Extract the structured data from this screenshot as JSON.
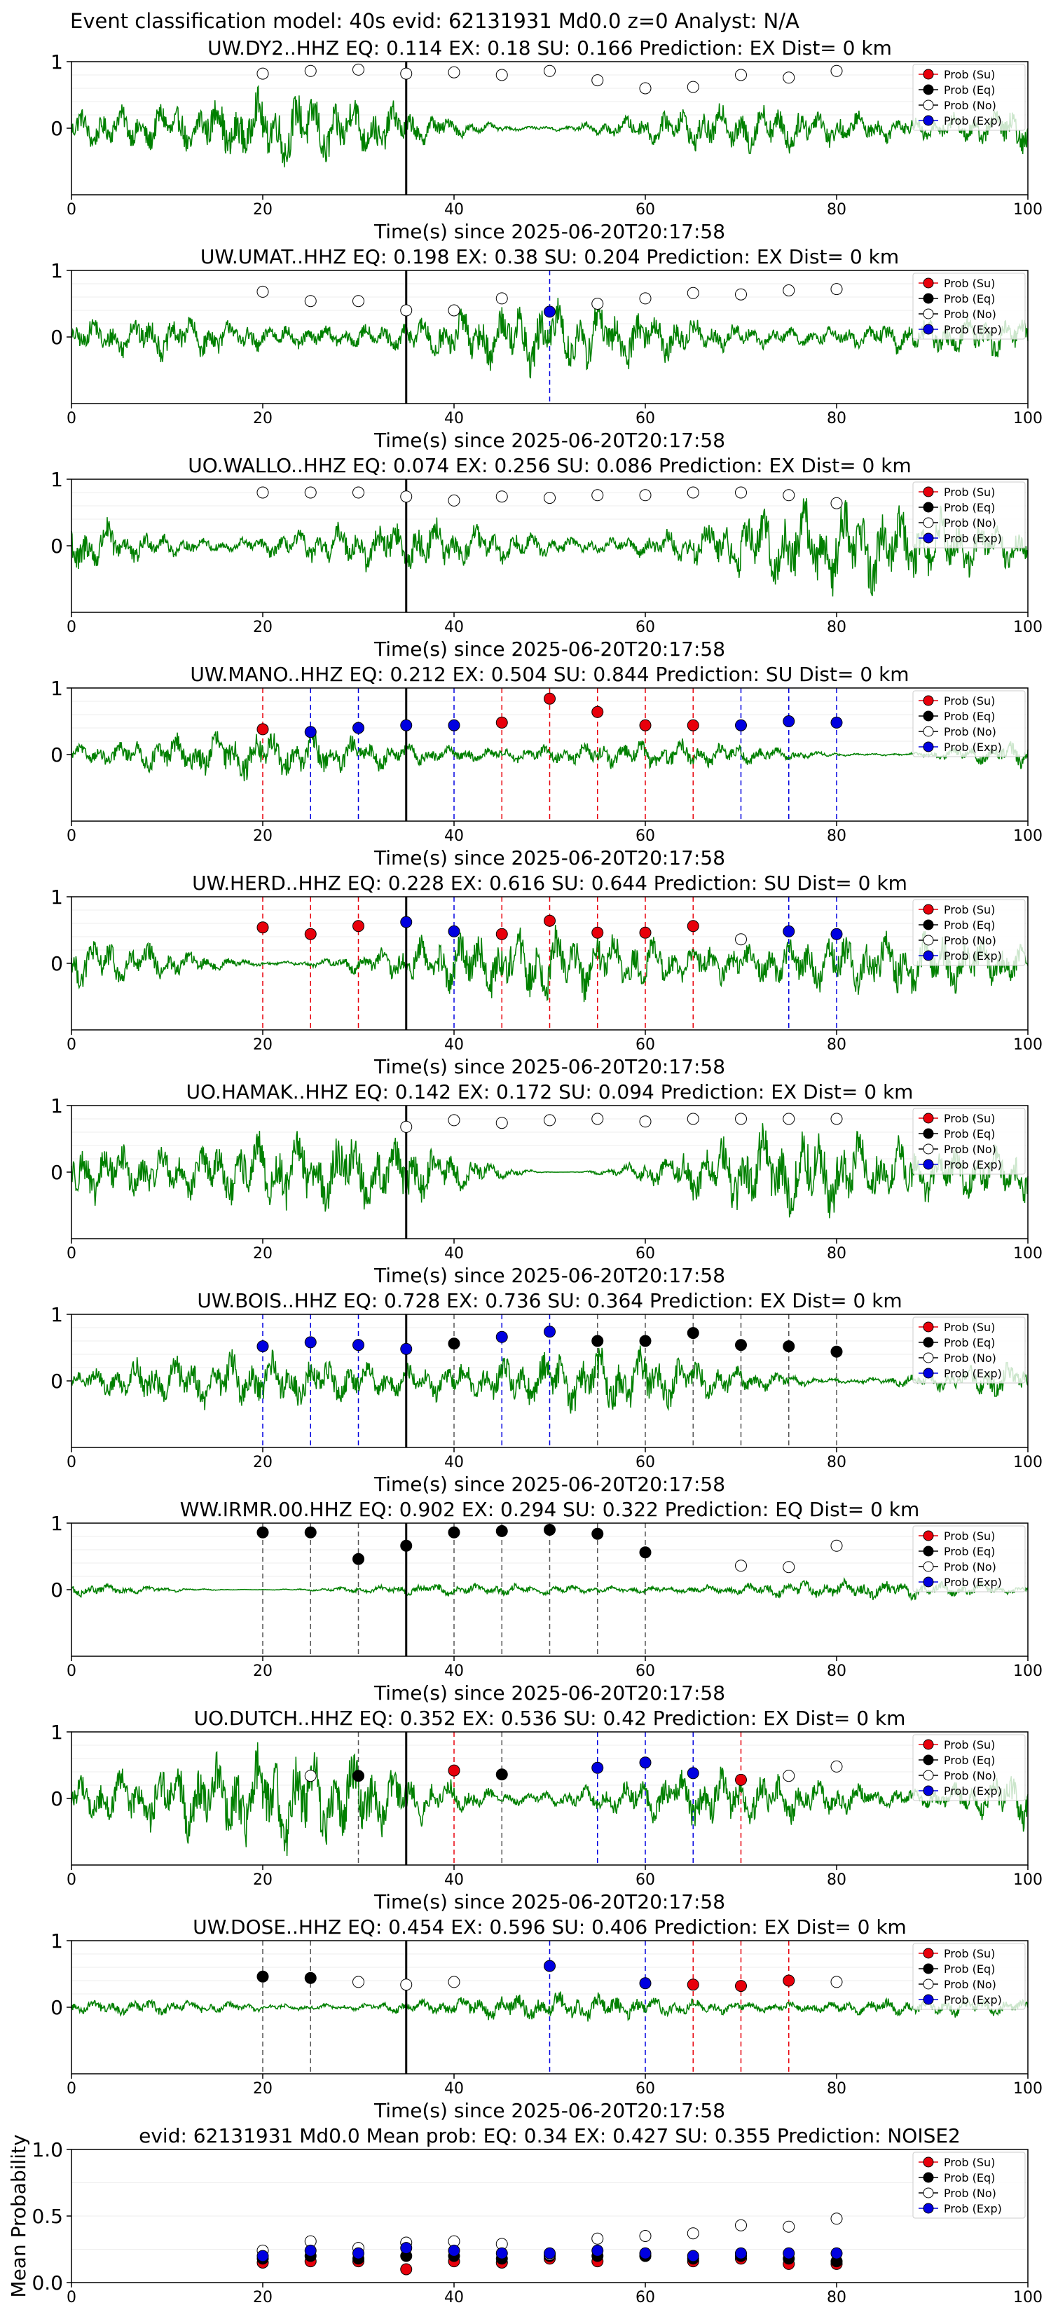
{
  "figure": {
    "suptitle": "Event classification model: 40s evid: 62131931 Md0.0 z=0 Analyst: N/A",
    "xlabel": "Time(s) since 2025-06-20T20:17:58",
    "legend_labels": [
      "Prob (Su)",
      "Prob (Eq)",
      "Prob (No)",
      "Prob (Exp)"
    ],
    "colors": {
      "su": "#e8000b",
      "eq": "#000000",
      "no": "#ffffff",
      "exp": "#0000e0",
      "trace": "#008000",
      "arrival": "#000000"
    }
  },
  "chart_data": [
    {
      "type": "line",
      "title": "UW.DY2..HHZ   EQ: 0.114  EX: 0.18  SU: 0.166   Prediction: EX    Dist= 0 km",
      "xlim": [
        0,
        100
      ],
      "ylim": [
        -1,
        1
      ],
      "xticks": [
        0,
        20,
        40,
        60,
        80,
        100
      ],
      "yticks": [
        0,
        1
      ],
      "arrival_s": 35,
      "trace_amp": 0.35,
      "t": [
        20,
        25,
        30,
        35,
        40,
        45,
        50,
        55,
        60,
        65,
        70,
        75,
        80
      ],
      "pred": [
        "no",
        "no",
        "no",
        "no",
        "no",
        "no",
        "no",
        "no",
        "no",
        "no",
        "no",
        "no",
        "no"
      ],
      "prob": [
        0.82,
        0.86,
        0.88,
        0.82,
        0.84,
        0.8,
        0.86,
        0.72,
        0.6,
        0.62,
        0.8,
        0.76,
        0.86
      ]
    },
    {
      "type": "line",
      "title": "UW.UMAT..HHZ   EQ: 0.198  EX: 0.38  SU: 0.204   Prediction: EX    Dist= 0 km",
      "xlim": [
        0,
        100
      ],
      "ylim": [
        -1,
        1
      ],
      "xticks": [
        0,
        20,
        40,
        60,
        80,
        100
      ],
      "yticks": [
        0,
        1
      ],
      "arrival_s": 35,
      "trace_amp": 0.3,
      "t": [
        20,
        25,
        30,
        35,
        40,
        45,
        50,
        55,
        60,
        65,
        70,
        75,
        80
      ],
      "pred": [
        "no",
        "no",
        "no",
        "no",
        "no",
        "no",
        "exp",
        "no",
        "no",
        "no",
        "no",
        "no",
        "no"
      ],
      "prob": [
        0.68,
        0.54,
        0.54,
        0.4,
        0.4,
        0.58,
        0.38,
        0.5,
        0.58,
        0.66,
        0.64,
        0.7,
        0.72
      ]
    },
    {
      "type": "line",
      "title": "UO.WALLO..HHZ   EQ: 0.074  EX: 0.256  SU: 0.086   Prediction: EX    Dist= 0 km",
      "xlim": [
        0,
        100
      ],
      "ylim": [
        -1,
        1
      ],
      "xticks": [
        0,
        20,
        40,
        60,
        80,
        100
      ],
      "yticks": [
        0,
        1
      ],
      "arrival_s": 35,
      "trace_amp": 0.4,
      "t": [
        20,
        25,
        30,
        35,
        40,
        45,
        50,
        55,
        60,
        65,
        70,
        75,
        80
      ],
      "pred": [
        "no",
        "no",
        "no",
        "no",
        "no",
        "no",
        "no",
        "no",
        "no",
        "no",
        "no",
        "no",
        "no"
      ],
      "prob": [
        0.8,
        0.8,
        0.8,
        0.74,
        0.68,
        0.74,
        0.72,
        0.76,
        0.76,
        0.8,
        0.8,
        0.76,
        0.64
      ]
    },
    {
      "type": "line",
      "title": "UW.MANO..HHZ   EQ: 0.212  EX: 0.504  SU: 0.844   Prediction: SU    Dist= 0 km",
      "xlim": [
        0,
        100
      ],
      "ylim": [
        -1,
        1
      ],
      "xticks": [
        0,
        20,
        40,
        60,
        80,
        100
      ],
      "yticks": [
        0,
        1
      ],
      "arrival_s": 35,
      "trace_amp": 0.2,
      "t": [
        20,
        25,
        30,
        35,
        40,
        45,
        50,
        55,
        60,
        65,
        70,
        75,
        80
      ],
      "pred": [
        "su",
        "exp",
        "exp",
        "exp",
        "exp",
        "su",
        "su",
        "su",
        "su",
        "su",
        "exp",
        "exp",
        "exp"
      ],
      "prob": [
        0.38,
        0.34,
        0.4,
        0.44,
        0.44,
        0.48,
        0.84,
        0.64,
        0.44,
        0.44,
        0.44,
        0.5,
        0.48
      ]
    },
    {
      "type": "line",
      "title": "UW.HERD..HHZ   EQ: 0.228  EX: 0.616  SU: 0.644   Prediction: SU    Dist= 0 km",
      "xlim": [
        0,
        100
      ],
      "ylim": [
        -1,
        1
      ],
      "xticks": [
        0,
        20,
        40,
        60,
        80,
        100
      ],
      "yticks": [
        0,
        1
      ],
      "arrival_s": 35,
      "trace_amp": 0.35,
      "t": [
        20,
        25,
        30,
        35,
        40,
        45,
        50,
        55,
        60,
        65,
        70,
        75,
        80
      ],
      "pred": [
        "su",
        "su",
        "su",
        "exp",
        "exp",
        "su",
        "su",
        "su",
        "su",
        "su",
        "no",
        "exp",
        "exp"
      ],
      "prob": [
        0.54,
        0.44,
        0.56,
        0.62,
        0.48,
        0.44,
        0.64,
        0.46,
        0.46,
        0.56,
        0.36,
        0.48,
        0.44
      ]
    },
    {
      "type": "line",
      "title": "UO.HAMAK..HHZ   EQ: 0.142  EX: 0.172  SU: 0.094   Prediction: EX    Dist= 0 km",
      "xlim": [
        0,
        100
      ],
      "ylim": [
        -1,
        1
      ],
      "xticks": [
        0,
        20,
        40,
        60,
        80,
        100
      ],
      "yticks": [
        0,
        1
      ],
      "arrival_s": 35,
      "trace_amp": 0.5,
      "t": [
        35,
        40,
        45,
        50,
        55,
        60,
        65,
        70,
        75,
        80
      ],
      "pred": [
        "no",
        "no",
        "no",
        "no",
        "no",
        "no",
        "no",
        "no",
        "no",
        "no"
      ],
      "prob": [
        0.68,
        0.78,
        0.74,
        0.78,
        0.8,
        0.76,
        0.8,
        0.8,
        0.8,
        0.8
      ]
    },
    {
      "type": "line",
      "title": "UW.BOIS..HHZ   EQ: 0.728  EX: 0.736  SU: 0.364   Prediction: EX    Dist= 0 km",
      "xlim": [
        0,
        100
      ],
      "ylim": [
        -1,
        1
      ],
      "xticks": [
        0,
        20,
        40,
        60,
        80,
        100
      ],
      "yticks": [
        0,
        1
      ],
      "arrival_s": 35,
      "trace_amp": 0.3,
      "t": [
        20,
        25,
        30,
        35,
        40,
        45,
        50,
        55,
        60,
        65,
        70,
        75,
        80
      ],
      "pred": [
        "exp",
        "exp",
        "exp",
        "exp",
        "eq",
        "exp",
        "exp",
        "eq",
        "eq",
        "eq",
        "eq",
        "eq",
        "eq"
      ],
      "prob": [
        0.52,
        0.58,
        0.54,
        0.48,
        0.56,
        0.66,
        0.74,
        0.6,
        0.6,
        0.72,
        0.54,
        0.52,
        0.44
      ]
    },
    {
      "type": "line",
      "title": "WW.IRMR.00.HHZ   EQ: 0.902  EX: 0.294  SU: 0.322   Prediction: EQ    Dist= 0 km",
      "xlim": [
        0,
        100
      ],
      "ylim": [
        -1,
        1
      ],
      "xticks": [
        0,
        20,
        40,
        60,
        80,
        100
      ],
      "yticks": [
        0,
        1
      ],
      "arrival_s": 35,
      "trace_amp": 0.08,
      "t": [
        20,
        25,
        30,
        35,
        40,
        45,
        50,
        55,
        60,
        70,
        75,
        80
      ],
      "pred": [
        "eq",
        "eq",
        "eq",
        "eq",
        "eq",
        "eq",
        "eq",
        "eq",
        "eq",
        "no",
        "no",
        "no"
      ],
      "prob": [
        0.86,
        0.86,
        0.46,
        0.66,
        0.86,
        0.88,
        0.9,
        0.84,
        0.56,
        0.36,
        0.34,
        0.66
      ]
    },
    {
      "type": "line",
      "title": "UO.DUTCH..HHZ   EQ: 0.352  EX: 0.536  SU: 0.42   Prediction: EX    Dist= 0 km",
      "xlim": [
        0,
        100
      ],
      "ylim": [
        -1,
        1
      ],
      "xticks": [
        0,
        20,
        40,
        60,
        80,
        100
      ],
      "yticks": [
        0,
        1
      ],
      "arrival_s": 35,
      "trace_amp": 0.45,
      "t": [
        25,
        30,
        40,
        45,
        55,
        60,
        65,
        70,
        75,
        80
      ],
      "pred": [
        "no",
        "eq",
        "su",
        "eq",
        "exp",
        "exp",
        "exp",
        "su",
        "no",
        "no"
      ],
      "prob": [
        0.34,
        0.34,
        0.42,
        0.36,
        0.46,
        0.54,
        0.38,
        0.28,
        0.34,
        0.48
      ]
    },
    {
      "type": "line",
      "title": "UW.DOSE..HHZ   EQ: 0.454  EX: 0.596  SU: 0.406   Prediction: EX    Dist= 0 km",
      "xlim": [
        0,
        100
      ],
      "ylim": [
        -1,
        1
      ],
      "xticks": [
        0,
        20,
        40,
        60,
        80,
        100
      ],
      "yticks": [
        0,
        1
      ],
      "arrival_s": 35,
      "trace_amp": 0.12,
      "t": [
        20,
        25,
        30,
        35,
        40,
        50,
        60,
        65,
        70,
        75,
        80
      ],
      "pred": [
        "eq",
        "eq",
        "no",
        "no",
        "no",
        "exp",
        "exp",
        "su",
        "su",
        "su",
        "no"
      ],
      "prob": [
        0.46,
        0.44,
        0.38,
        0.34,
        0.38,
        0.62,
        0.36,
        0.34,
        0.32,
        0.4,
        0.38
      ]
    },
    {
      "type": "scatter",
      "title": "evid: 62131931  Md0.0   Mean prob:   EQ: 0.34  EX: 0.427  SU: 0.355   Prediction: NOISE2",
      "ylabel": "Mean Probability",
      "xlim": [
        0,
        100
      ],
      "ylim": [
        0,
        1
      ],
      "xticks": [
        0,
        20,
        40,
        60,
        80,
        100
      ],
      "yticks": [
        0,
        0.5,
        1
      ],
      "ytick_labels": [
        "0.0",
        "0.5",
        "1.0"
      ],
      "x": [
        20,
        25,
        30,
        35,
        40,
        45,
        50,
        55,
        60,
        65,
        70,
        75,
        80
      ],
      "series": [
        {
          "name": "Prob (Su)",
          "key": "su",
          "values": [
            0.15,
            0.16,
            0.16,
            0.1,
            0.16,
            0.15,
            0.18,
            0.16,
            0.2,
            0.16,
            0.18,
            0.14,
            0.14
          ]
        },
        {
          "name": "Prob (Eq)",
          "key": "eq",
          "values": [
            0.18,
            0.2,
            0.18,
            0.2,
            0.2,
            0.18,
            0.2,
            0.2,
            0.2,
            0.18,
            0.2,
            0.18,
            0.16
          ]
        },
        {
          "name": "Prob (No)",
          "key": "no",
          "values": [
            0.24,
            0.31,
            0.26,
            0.3,
            0.31,
            0.29,
            0.21,
            0.33,
            0.35,
            0.37,
            0.43,
            0.42,
            0.48
          ]
        },
        {
          "name": "Prob (Exp)",
          "key": "exp",
          "values": [
            0.2,
            0.24,
            0.22,
            0.26,
            0.24,
            0.22,
            0.22,
            0.24,
            0.22,
            0.2,
            0.22,
            0.22,
            0.22
          ]
        }
      ]
    }
  ]
}
